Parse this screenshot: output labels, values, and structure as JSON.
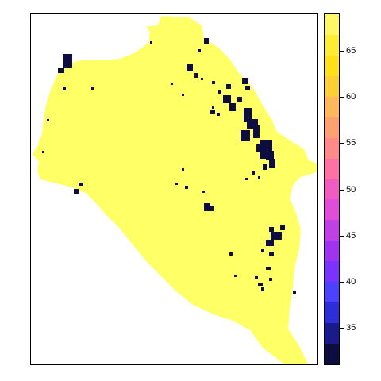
{
  "map": {
    "fill_color": "#FFFF66",
    "low_value_color": "#0D0D40"
  },
  "legend": {
    "min": 31,
    "max": 69,
    "colors": [
      "#0D0D40",
      "#1A1A8C",
      "#2E2ED9",
      "#4D40FF",
      "#7A33FF",
      "#A033F0",
      "#C040E6",
      "#E04DD9",
      "#F05CC0",
      "#FF70A6",
      "#FF8A8A",
      "#FFA070",
      "#FFB85C",
      "#FFD033",
      "#FFE01A",
      "#FFEC33",
      "#FFF766"
    ],
    "ticks": [
      {
        "value": 35,
        "label": "35"
      },
      {
        "value": 40,
        "label": "40"
      },
      {
        "value": 45,
        "label": "45"
      },
      {
        "value": 50,
        "label": "50"
      },
      {
        "value": 55,
        "label": "55"
      },
      {
        "value": 60,
        "label": "60"
      },
      {
        "value": 65,
        "label": "65"
      }
    ]
  }
}
